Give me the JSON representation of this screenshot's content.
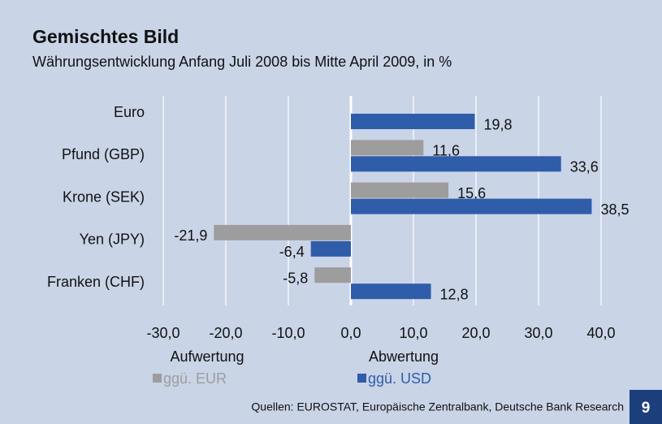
{
  "chart_data": {
    "type": "hbar",
    "title": "Gemischtes Bild",
    "subtitle": "Währungsentwicklung Anfang Juli 2008 bis Mitte April 2009, in %",
    "categories": [
      "Euro",
      "Pfund (GBP)",
      "Krone (SEK)",
      "Yen (JPY)",
      "Franken (CHF)"
    ],
    "series": [
      {
        "name": "ggü. EUR",
        "color": "#9d9d9d",
        "values": [
          null,
          11.6,
          15.6,
          -21.9,
          -5.8
        ],
        "value_labels": [
          null,
          "11,6",
          "15,6",
          "-21,9",
          "-5,8"
        ]
      },
      {
        "name": "ggü. USD",
        "color": "#2f5da9",
        "values": [
          19.8,
          33.6,
          38.5,
          -6.4,
          12.8
        ],
        "value_labels": [
          "19,8",
          "33,6",
          "38,5",
          "-6,4",
          "12,8"
        ]
      }
    ],
    "xlim": [
      -30,
      40
    ],
    "xticks": [
      {
        "value": -30,
        "label": "-30,0"
      },
      {
        "value": -20,
        "label": "-20,0"
      },
      {
        "value": -10,
        "label": "-10,0"
      },
      {
        "value": 0,
        "label": "0,0"
      },
      {
        "value": 10,
        "label": "10,0"
      },
      {
        "value": 20,
        "label": "20,0"
      },
      {
        "value": 30,
        "label": "30,0"
      },
      {
        "value": 40,
        "label": "40,0"
      }
    ],
    "grid": true,
    "annotations": [
      "Aufwertung",
      "Abwertung"
    ],
    "source": "Quellen: EUROSTAT, Europäische Zentralbank, Deutsche Bank Research",
    "page_number": "9"
  }
}
